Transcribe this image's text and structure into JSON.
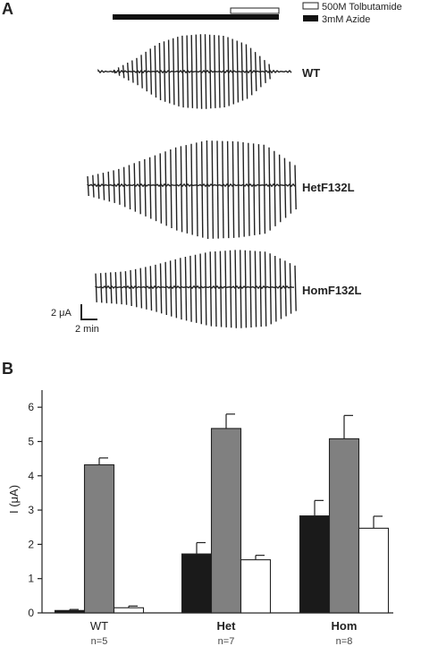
{
  "panel_a": {
    "label": "A",
    "legend": {
      "tolbutamide": "500M Tolbutamide",
      "azide": "3mM Azide"
    },
    "traces": [
      {
        "name": "WT",
        "cycles": 34,
        "envelope": [
          0.05,
          0.35,
          0.75,
          0.95,
          1.0,
          0.95,
          0.72,
          0.2
        ],
        "amplitude": 1.0,
        "lower_scale": 1.0
      },
      {
        "name": "HetF132L",
        "cycles": 40,
        "envelope": [
          0.2,
          0.35,
          0.6,
          0.85,
          1.0,
          0.98,
          0.9,
          0.45
        ],
        "amplitude": 1.0,
        "lower_scale": 1.2
      },
      {
        "name": "HomF132L",
        "cycles": 40,
        "envelope": [
          0.35,
          0.4,
          0.55,
          0.75,
          0.9,
          0.95,
          0.9,
          0.55
        ],
        "amplitude": 1.0,
        "lower_scale": 1.1
      }
    ],
    "scale_bar": {
      "current": "2 μA",
      "time": "2 min"
    }
  },
  "chart_data": {
    "type": "bar",
    "panel_label": "B",
    "ylabel": "I (μA)",
    "ylim": [
      0,
      6.5
    ],
    "yticks": [
      0,
      1,
      2,
      3,
      4,
      5,
      6
    ],
    "categories": [
      "WT",
      "Het",
      "Hom"
    ],
    "sample_sizes": [
      "n=5",
      "n=7",
      "n=8"
    ],
    "series": [
      {
        "values": [
          0.07,
          1.72,
          2.83
        ],
        "errors": [
          0.03,
          0.33,
          0.45
        ],
        "color": "#1a1a1a"
      },
      {
        "values": [
          4.32,
          5.38,
          5.08
        ],
        "errors": [
          0.2,
          0.42,
          0.68
        ],
        "color": "#808080"
      },
      {
        "values": [
          0.15,
          1.55,
          2.47
        ],
        "errors": [
          0.05,
          0.13,
          0.35
        ],
        "color": "#ffffff"
      }
    ]
  }
}
